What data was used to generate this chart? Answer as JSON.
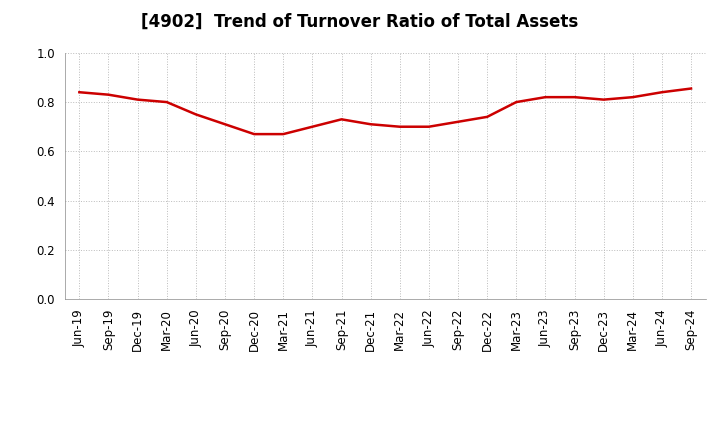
{
  "title": "[4902]  Trend of Turnover Ratio of Total Assets",
  "x_labels": [
    "Jun-19",
    "Sep-19",
    "Dec-19",
    "Mar-20",
    "Jun-20",
    "Sep-20",
    "Dec-20",
    "Mar-21",
    "Jun-21",
    "Sep-21",
    "Dec-21",
    "Mar-22",
    "Jun-22",
    "Sep-22",
    "Dec-22",
    "Mar-23",
    "Jun-23",
    "Sep-23",
    "Dec-23",
    "Mar-24",
    "Jun-24",
    "Sep-24"
  ],
  "values": [
    0.84,
    0.83,
    0.81,
    0.8,
    0.75,
    0.71,
    0.67,
    0.67,
    0.7,
    0.73,
    0.71,
    0.7,
    0.7,
    0.72,
    0.74,
    0.8,
    0.82,
    0.82,
    0.81,
    0.82,
    0.84,
    0.855
  ],
  "line_color": "#cc0000",
  "line_width": 1.8,
  "ylim": [
    0.0,
    1.0
  ],
  "yticks": [
    0.0,
    0.2,
    0.4,
    0.6,
    0.8,
    1.0
  ],
  "title_fontsize": 12,
  "tick_fontsize": 8.5,
  "background_color": "#ffffff",
  "grid_color": "#bbbbbb",
  "grid_style": ":"
}
